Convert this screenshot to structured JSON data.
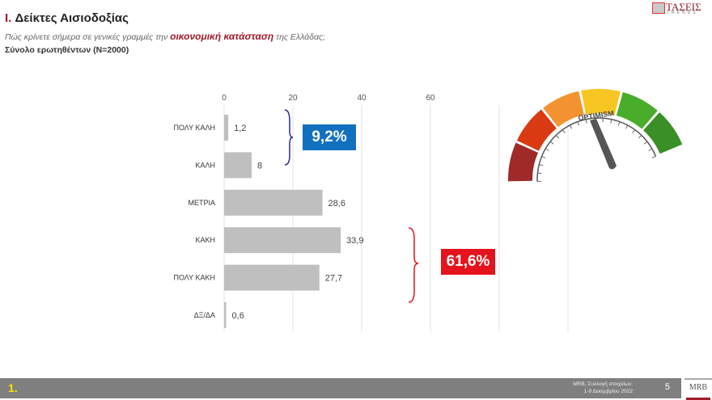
{
  "header": {
    "section_number": "I.",
    "title": "Δείκτες Αισιοδοξίας",
    "question_pre": "Πώς κρίνετε σήμερα σε γενικές γραμμές την ",
    "question_highlight": "οικονομική κατάσταση",
    "question_post": " της Ελλάδας;",
    "base": "Σύνολο ερωτηθέντων (N=2000)"
  },
  "logo": {
    "text": "ΤΑΣΕΙΣ",
    "sub": "TRENDS"
  },
  "chart_data": {
    "type": "bar",
    "orientation": "horizontal",
    "categories": [
      "ΠΟΛΥ ΚΑΛΗ",
      "ΚΑΛΗ",
      "ΜΕΤΡΙΑ",
      "ΚΑΚΗ",
      "ΠΟΛΥ ΚΑΚΗ",
      "ΔΞ/ΔΑ"
    ],
    "values": [
      1.2,
      8,
      28.6,
      33.9,
      27.7,
      0.6
    ],
    "value_labels": [
      "1,2",
      "8",
      "28,6",
      "33,9",
      "27,7",
      "0,6"
    ],
    "xticks": [
      0,
      20,
      40,
      60
    ],
    "xlim": [
      0,
      100
    ],
    "grid": true,
    "bar_color": "#bfbfbf",
    "annotations": [
      {
        "text": "9,2%",
        "color": "#1170c0",
        "groups": [
          "ΠΟΛΥ ΚΑΛΗ",
          "ΚΑΛΗ"
        ]
      },
      {
        "text": "61,6%",
        "color": "#e5131d",
        "groups": [
          "ΚΑΚΗ",
          "ΠΟΛΥ ΚΑΚΗ"
        ]
      }
    ]
  },
  "gauge": {
    "label": "OPTIMISM",
    "colors": [
      "#a0292a",
      "#d93a12",
      "#f39231",
      "#f7c623",
      "#4aac2b",
      "#3a8f26"
    ]
  },
  "footer": {
    "page_label": "1.",
    "source_line1": "MRB, Συλλογή στοιχείων:",
    "source_line2": "1-9 Δεκεμβρίου 2022",
    "page_number": "5",
    "mrb": "MRB"
  }
}
